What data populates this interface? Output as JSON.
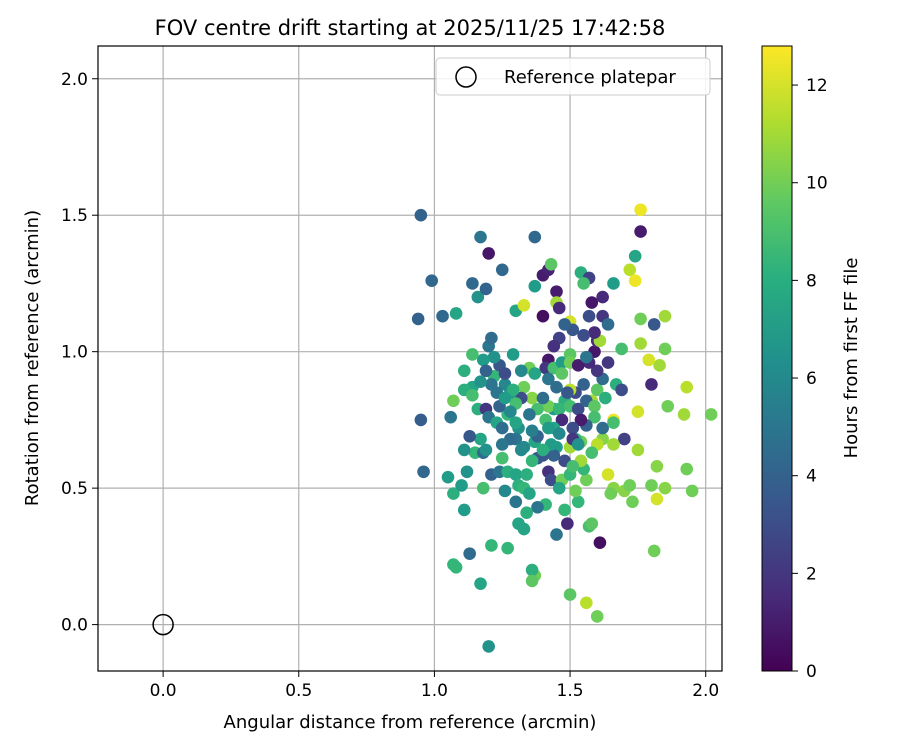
{
  "chart_data": {
    "type": "scatter",
    "title": "FOV centre drift starting at 2025/11/25 17:42:58",
    "xlabel": "Angular distance from reference (arcmin)",
    "ylabel": "Rotation from reference (arcmin)",
    "xlim": [
      -0.24,
      2.06
    ],
    "ylim": [
      -0.17,
      2.12
    ],
    "xticks": [
      0.0,
      0.5,
      1.0,
      1.5,
      2.0
    ],
    "yticks": [
      0.0,
      0.5,
      1.0,
      1.5,
      2.0
    ],
    "tick_labels_x": [
      "0.0",
      "0.5",
      "1.0",
      "1.5",
      "2.0"
    ],
    "tick_labels_y": [
      "0.0",
      "0.5",
      "1.0",
      "1.5",
      "2.0"
    ],
    "grid": true,
    "legend": {
      "location": "upper right",
      "label": "Reference platepar"
    },
    "reference": {
      "x": 0.0,
      "y": 0.0
    },
    "colorbar": {
      "label": "Hours from first FF file",
      "colormap": "viridis",
      "range": [
        0,
        12.8
      ],
      "ticks": [
        0,
        2,
        4,
        6,
        8,
        10,
        12
      ],
      "tick_labels": [
        "0",
        "2",
        "4",
        "6",
        "8",
        "10",
        "12"
      ]
    },
    "points": [
      [
        0.95,
        1.5,
        4.0
      ],
      [
        0.99,
        1.26,
        4.2
      ],
      [
        0.94,
        1.12,
        4.0
      ],
      [
        1.03,
        1.13,
        4.3
      ],
      [
        1.08,
        1.14,
        7.5
      ],
      [
        0.95,
        0.75,
        3.8
      ],
      [
        0.96,
        0.56,
        4.2
      ],
      [
        1.17,
        1.42,
        5.0
      ],
      [
        1.2,
        1.36,
        0.8
      ],
      [
        1.16,
        1.2,
        6.5
      ],
      [
        1.14,
        1.25,
        4.3
      ],
      [
        1.19,
        1.23,
        4.1
      ],
      [
        1.25,
        1.3,
        4.3
      ],
      [
        1.37,
        1.42,
        4.3
      ],
      [
        1.3,
        1.15,
        7.5
      ],
      [
        1.33,
        1.17,
        12.0
      ],
      [
        1.37,
        1.24,
        7.0
      ],
      [
        1.4,
        1.28,
        1.0
      ],
      [
        1.4,
        1.13,
        0.5
      ],
      [
        1.42,
        1.3,
        1.2
      ],
      [
        1.43,
        1.32,
        9.5
      ],
      [
        1.45,
        1.22,
        1.0
      ],
      [
        1.45,
        1.18,
        11.0
      ],
      [
        1.46,
        1.16,
        1.5
      ],
      [
        1.5,
        1.11,
        12.0
      ],
      [
        1.54,
        1.29,
        8.0
      ],
      [
        1.57,
        1.27,
        2.5
      ],
      [
        1.55,
        1.25,
        9.0
      ],
      [
        1.58,
        1.18,
        0.8
      ],
      [
        1.62,
        1.2,
        1.5
      ],
      [
        1.66,
        1.25,
        7.0
      ],
      [
        1.72,
        1.3,
        11.5
      ],
      [
        1.74,
        1.26,
        12.5
      ],
      [
        1.76,
        1.52,
        12.5
      ],
      [
        1.76,
        1.44,
        1.0
      ],
      [
        1.74,
        1.35,
        7.5
      ],
      [
        1.62,
        1.13,
        2.0
      ],
      [
        1.64,
        1.1,
        4.5
      ],
      [
        1.76,
        1.12,
        10.0
      ],
      [
        1.81,
        1.1,
        3.5
      ],
      [
        1.85,
        1.13,
        11.0
      ],
      [
        1.85,
        1.01,
        10.0
      ],
      [
        1.83,
        0.95,
        11.0
      ],
      [
        1.79,
        0.97,
        12.0
      ],
      [
        1.76,
        1.03,
        11.0
      ],
      [
        1.69,
        1.01,
        9.0
      ],
      [
        1.8,
        0.88,
        1.5
      ],
      [
        1.93,
        0.87,
        11.5
      ],
      [
        1.86,
        0.8,
        10.0
      ],
      [
        1.92,
        0.77,
        11.0
      ],
      [
        2.02,
        0.77,
        10.0
      ],
      [
        1.75,
        0.78,
        12.0
      ],
      [
        1.66,
        0.75,
        12.5
      ],
      [
        1.7,
        0.68,
        2.5
      ],
      [
        1.75,
        0.64,
        11.0
      ],
      [
        1.66,
        0.66,
        11.0
      ],
      [
        1.62,
        0.68,
        10.5
      ],
      [
        1.6,
        0.66,
        11.5
      ],
      [
        1.58,
        0.63,
        9.0
      ],
      [
        1.54,
        0.67,
        10.0
      ],
      [
        1.52,
        0.68,
        8.0
      ],
      [
        1.5,
        0.65,
        11.0
      ],
      [
        1.64,
        0.55,
        12.0
      ],
      [
        1.66,
        0.5,
        10.5
      ],
      [
        1.7,
        0.49,
        10.5
      ],
      [
        1.72,
        0.51,
        10.0
      ],
      [
        1.65,
        0.48,
        10.0
      ],
      [
        1.73,
        0.45,
        10.0
      ],
      [
        1.8,
        0.51,
        10.0
      ],
      [
        1.82,
        0.46,
        12.0
      ],
      [
        1.85,
        0.5,
        10.5
      ],
      [
        1.82,
        0.58,
        10.5
      ],
      [
        1.93,
        0.57,
        10.0
      ],
      [
        1.95,
        0.49,
        10.0
      ],
      [
        1.81,
        0.27,
        10.0
      ],
      [
        1.61,
        0.3,
        0.5
      ],
      [
        1.57,
        0.36,
        9.0
      ],
      [
        1.53,
        0.45,
        8.5
      ],
      [
        1.52,
        0.49,
        10.0
      ],
      [
        1.56,
        0.53,
        10.0
      ],
      [
        1.58,
        0.37,
        9.5
      ],
      [
        1.58,
        0.82,
        11.0
      ],
      [
        1.6,
        0.86,
        9.5
      ],
      [
        1.63,
        0.83,
        8.0
      ],
      [
        1.67,
        0.88,
        8.0
      ],
      [
        1.62,
        0.9,
        4.5
      ],
      [
        1.64,
        0.96,
        2.0
      ],
      [
        1.6,
        0.93,
        2.0
      ],
      [
        1.57,
        0.96,
        1.5
      ],
      [
        1.59,
        1.0,
        0.8
      ],
      [
        1.6,
        1.04,
        1.5
      ],
      [
        1.61,
        1.04,
        11.0
      ],
      [
        1.59,
        1.07,
        1.5
      ],
      [
        1.57,
        1.13,
        3.0
      ],
      [
        1.55,
        1.06,
        3.0
      ],
      [
        1.51,
        1.08,
        3.5
      ],
      [
        1.48,
        1.1,
        4.0
      ],
      [
        1.46,
        1.05,
        2.5
      ],
      [
        1.44,
        1.02,
        1.8
      ],
      [
        1.42,
        0.97,
        0.8
      ],
      [
        1.41,
        0.94,
        2.0
      ],
      [
        1.44,
        0.94,
        9.0
      ],
      [
        1.47,
        0.96,
        7.0
      ],
      [
        1.5,
        0.99,
        9.5
      ],
      [
        1.5,
        0.96,
        10.0
      ],
      [
        1.53,
        0.95,
        1.0
      ],
      [
        1.55,
        0.88,
        4.0
      ],
      [
        1.52,
        0.85,
        3.0
      ],
      [
        1.5,
        0.86,
        11.5
      ],
      [
        1.48,
        0.82,
        8.0
      ],
      [
        1.44,
        0.79,
        7.0
      ],
      [
        1.42,
        0.8,
        10.0
      ],
      [
        1.46,
        0.79,
        8.5
      ],
      [
        1.5,
        0.8,
        9.0
      ],
      [
        1.53,
        0.79,
        3.0
      ],
      [
        1.56,
        0.82,
        4.0
      ],
      [
        1.59,
        0.8,
        9.5
      ],
      [
        1.59,
        0.76,
        9.0
      ],
      [
        1.62,
        0.72,
        4.5
      ],
      [
        1.56,
        0.73,
        4.0
      ],
      [
        1.54,
        0.75,
        1.0
      ],
      [
        1.51,
        0.72,
        3.0
      ],
      [
        1.47,
        0.75,
        1.5
      ],
      [
        1.44,
        0.72,
        7.5
      ],
      [
        1.41,
        0.75,
        9.0
      ],
      [
        1.38,
        0.79,
        9.0
      ],
      [
        1.36,
        0.83,
        10.5
      ],
      [
        1.33,
        0.87,
        10.0
      ],
      [
        1.32,
        0.83,
        3.0
      ],
      [
        1.3,
        0.81,
        9.0
      ],
      [
        1.28,
        0.85,
        7.0
      ],
      [
        1.26,
        0.88,
        6.0
      ],
      [
        1.23,
        0.85,
        5.0
      ],
      [
        1.22,
        0.91,
        8.5
      ],
      [
        1.24,
        0.95,
        3.5
      ],
      [
        1.22,
        0.98,
        6.5
      ],
      [
        1.2,
        1.02,
        5.0
      ],
      [
        1.21,
        1.05,
        4.5
      ],
      [
        1.18,
        0.97,
        7.0
      ],
      [
        1.14,
        0.99,
        9.0
      ],
      [
        1.11,
        0.93,
        8.0
      ],
      [
        1.14,
        0.87,
        7.5
      ],
      [
        1.11,
        0.86,
        8.0
      ],
      [
        1.07,
        0.82,
        10.0
      ],
      [
        1.16,
        0.79,
        8.0
      ],
      [
        1.19,
        0.79,
        2.0
      ],
      [
        1.2,
        0.76,
        5.0
      ],
      [
        1.23,
        0.74,
        7.5
      ],
      [
        1.25,
        0.72,
        4.5
      ],
      [
        1.27,
        0.77,
        8.5
      ],
      [
        1.31,
        0.72,
        6.5
      ],
      [
        1.3,
        0.68,
        5.0
      ],
      [
        1.33,
        0.65,
        6.0
      ],
      [
        1.37,
        0.67,
        7.5
      ],
      [
        1.38,
        0.69,
        4.0
      ],
      [
        1.42,
        0.72,
        7.0
      ],
      [
        1.45,
        0.65,
        7.0
      ],
      [
        1.44,
        0.62,
        4.0
      ],
      [
        1.4,
        0.62,
        3.5
      ],
      [
        1.42,
        0.56,
        1.8
      ],
      [
        1.43,
        0.53,
        3.0
      ],
      [
        1.47,
        0.53,
        10.0
      ],
      [
        1.5,
        0.55,
        8.5
      ],
      [
        1.51,
        0.68,
        2.0
      ],
      [
        1.53,
        0.66,
        6.5
      ],
      [
        1.55,
        0.57,
        8.5
      ],
      [
        1.54,
        0.6,
        11.0
      ],
      [
        1.49,
        0.37,
        1.5
      ],
      [
        1.48,
        0.42,
        8.5
      ],
      [
        1.46,
        0.5,
        7.5
      ],
      [
        1.45,
        0.33,
        5.0
      ],
      [
        1.41,
        0.44,
        8.5
      ],
      [
        1.38,
        0.43,
        5.0
      ],
      [
        1.34,
        0.41,
        8.0
      ],
      [
        1.33,
        0.35,
        7.5
      ],
      [
        1.31,
        0.37,
        7.5
      ],
      [
        1.27,
        0.28,
        8.5
      ],
      [
        1.21,
        0.29,
        8.5
      ],
      [
        1.17,
        0.15,
        7.5
      ],
      [
        1.13,
        0.26,
        4.5
      ],
      [
        1.08,
        0.21,
        8.5
      ],
      [
        1.07,
        0.22,
        8.5
      ],
      [
        1.11,
        0.42,
        7.0
      ],
      [
        1.07,
        0.48,
        8.0
      ],
      [
        1.05,
        0.54,
        7.0
      ],
      [
        1.1,
        0.51,
        7.0
      ],
      [
        1.12,
        0.56,
        6.5
      ],
      [
        1.15,
        0.63,
        8.5
      ],
      [
        1.18,
        0.63,
        4.5
      ],
      [
        1.18,
        0.5,
        9.0
      ],
      [
        1.21,
        0.55,
        4.0
      ],
      [
        1.24,
        0.56,
        5.0
      ],
      [
        1.25,
        0.61,
        9.0
      ],
      [
        1.27,
        0.56,
        8.0
      ],
      [
        1.3,
        0.55,
        7.5
      ],
      [
        1.3,
        0.45,
        5.0
      ],
      [
        1.31,
        0.51,
        8.0
      ],
      [
        1.33,
        0.5,
        8.5
      ],
      [
        1.35,
        0.48,
        7.5
      ],
      [
        1.34,
        0.55,
        8.0
      ],
      [
        1.32,
        0.64,
        6.0
      ],
      [
        1.28,
        0.68,
        4.5
      ],
      [
        1.25,
        0.66,
        5.0
      ],
      [
        1.19,
        0.64,
        6.5
      ],
      [
        1.17,
        0.68,
        7.5
      ],
      [
        1.13,
        0.69,
        3.5
      ],
      [
        1.11,
        0.64,
        6.5
      ],
      [
        1.06,
        0.76,
        5.0
      ],
      [
        1.37,
        0.18,
        10.0
      ],
      [
        1.36,
        0.2,
        8.0
      ],
      [
        1.36,
        0.16,
        9.5
      ],
      [
        1.5,
        0.11,
        9.5
      ],
      [
        1.56,
        0.08,
        11.5
      ],
      [
        1.6,
        0.03,
        10.0
      ],
      [
        1.2,
        -0.08,
        6.5
      ],
      [
        1.26,
        0.49,
        6.0
      ],
      [
        1.38,
        0.61,
        3.5
      ],
      [
        1.35,
        0.94,
        10.0
      ],
      [
        1.37,
        0.92,
        7.5
      ],
      [
        1.29,
        0.99,
        7.0
      ],
      [
        1.26,
        0.92,
        3.0
      ],
      [
        1.24,
        0.8,
        4.0
      ],
      [
        1.28,
        0.78,
        6.0
      ],
      [
        1.3,
        0.74,
        7.5
      ],
      [
        1.35,
        0.77,
        5.0
      ],
      [
        1.4,
        0.83,
        4.5
      ],
      [
        1.42,
        0.9,
        5.0
      ],
      [
        1.45,
        0.87,
        4.5
      ],
      [
        1.47,
        0.92,
        9.5
      ],
      [
        1.49,
        0.85,
        3.5
      ],
      [
        1.46,
        0.7,
        6.0
      ],
      [
        1.43,
        0.66,
        7.0
      ],
      [
        1.4,
        0.64,
        8.0
      ],
      [
        1.36,
        0.6,
        8.5
      ],
      [
        1.29,
        0.86,
        8.0
      ],
      [
        1.26,
        0.83,
        7.0
      ],
      [
        1.21,
        0.88,
        5.0
      ],
      [
        1.19,
        0.93,
        4.0
      ],
      [
        1.17,
        0.89,
        6.5
      ],
      [
        1.14,
        0.84,
        9.0
      ],
      [
        1.32,
        0.93,
        6.0
      ],
      [
        1.36,
        0.71,
        5.5
      ],
      [
        1.48,
        0.6,
        3.0
      ],
      [
        1.51,
        0.58,
        9.0
      ],
      [
        1.56,
        0.98,
        5.0
      ],
      [
        1.66,
        0.74,
        9.0
      ],
      [
        1.69,
        0.86,
        3.0
      ]
    ]
  }
}
